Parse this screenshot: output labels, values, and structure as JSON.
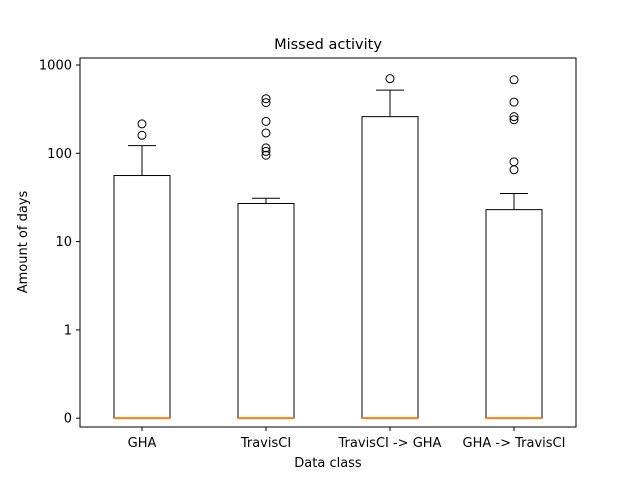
{
  "chart_data": {
    "type": "boxplot",
    "title": "Missed activity",
    "xlabel": "Data class",
    "ylabel": "Amount of days",
    "yscale": "symlog",
    "ylim": [
      -0.1,
      1200
    ],
    "yticks": [
      0,
      1,
      10,
      100,
      1000
    ],
    "ytick_labels": [
      "0",
      "1",
      "10",
      "100",
      "1000"
    ],
    "categories": [
      "GHA",
      "TravisCI",
      "TravisCI -> GHA",
      "GHA -> TravisCI"
    ],
    "boxes": [
      {
        "category": "GHA",
        "q1": 0,
        "median": 0,
        "q3": 56,
        "whisker_low": 0,
        "whisker_high": 122,
        "fliers": [
          160,
          215
        ]
      },
      {
        "category": "TravisCI",
        "q1": 0,
        "median": 0,
        "q3": 27,
        "whisker_low": 0,
        "whisker_high": 31,
        "fliers": [
          95,
          105,
          115,
          170,
          230,
          375,
          415
        ]
      },
      {
        "category": "TravisCI -> GHA",
        "q1": 0,
        "median": 0,
        "q3": 260,
        "whisker_low": 0,
        "whisker_high": 520,
        "fliers": [
          700
        ]
      },
      {
        "category": "GHA -> TravisCI",
        "q1": 0,
        "median": 0,
        "q3": 23,
        "whisker_low": 0,
        "whisker_high": 35,
        "fliers": [
          65,
          80,
          240,
          260,
          380,
          680
        ]
      }
    ],
    "colors": {
      "box": "#000000",
      "median": "#ff7f0e"
    },
    "grid": false
  }
}
